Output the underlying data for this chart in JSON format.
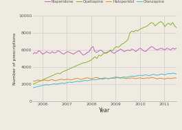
{
  "title": "",
  "xlabel": "Year",
  "ylabel": "Number of prescriptions",
  "background_color": "#f0ebe0",
  "plot_bg_color": "#f0ebe0",
  "ylim": [
    0,
    10000
  ],
  "yticks": [
    0,
    2000,
    4000,
    6000,
    8000,
    10000
  ],
  "legend": [
    "Risperidone",
    "Quetiapine",
    "Haloperidol",
    "Olanzapine"
  ],
  "colors": {
    "Risperidone": "#c060c0",
    "Quetiapine": "#80b030",
    "Haloperidol": "#e08828",
    "Olanzapine": "#40b8d8"
  },
  "line_width": 0.7,
  "start_year": 2005.6,
  "end_year": 2011.5,
  "xtick_years": [
    2006,
    2007,
    2008,
    2009,
    2010,
    2011
  ],
  "n_points": 75,
  "series": {
    "Risperidone": [
      5500,
      5700,
      5600,
      5900,
      5800,
      5500,
      5600,
      5800,
      5700,
      5600,
      5800,
      5650,
      5700,
      5900,
      5800,
      5600,
      5500,
      5700,
      5800,
      5700,
      5600,
      5500,
      5700,
      5800,
      5900,
      5600,
      5400,
      5500,
      5700,
      5800,
      6200,
      6400,
      5800,
      5700,
      5900,
      6000,
      5800,
      5600,
      5700,
      5800,
      5900,
      5700,
      5600,
      5800,
      5900,
      6100,
      6000,
      5800,
      5900,
      6000,
      5900,
      6100,
      6000,
      5800,
      6000,
      6200,
      6100,
      5900,
      5800,
      6000,
      6200,
      6400,
      6300,
      6100,
      6000,
      6100,
      6200,
      6100,
      6000,
      6200,
      6100,
      6000,
      6200,
      6100,
      6200
    ],
    "Quetiapine": [
      2000,
      2100,
      2200,
      2300,
      2400,
      2500,
      2600,
      2700,
      2800,
      2900,
      3000,
      3100,
      3200,
      3300,
      3200,
      3400,
      3500,
      3600,
      3700,
      3800,
      3900,
      4000,
      4100,
      4200,
      4300,
      4400,
      4500,
      4500,
      4600,
      4700,
      4800,
      5000,
      5200,
      5000,
      5400,
      5300,
      5500,
      5700,
      5600,
      5800,
      6000,
      5900,
      6200,
      6400,
      6300,
      6500,
      6700,
      6800,
      7000,
      7200,
      8000,
      8200,
      8100,
      8300,
      8200,
      8400,
      8500,
      8600,
      8700,
      8800,
      9000,
      9200,
      9100,
      8800,
      9000,
      9200,
      9300,
      9100,
      8700,
      9000,
      9100,
      8900,
      9200,
      8800,
      8600
    ],
    "Haloperidol": [
      2400,
      2350,
      2450,
      2500,
      2400,
      2450,
      2500,
      2450,
      2400,
      2500,
      2550,
      2450,
      2400,
      2500,
      2550,
      2600,
      2500,
      2550,
      2600,
      2550,
      2500,
      2600,
      2650,
      2700,
      2600,
      2550,
      2650,
      2700,
      2750,
      2700,
      2650,
      2700,
      2750,
      2800,
      2700,
      2650,
      2700,
      2750,
      2700,
      2650,
      2700,
      2700,
      2800,
      2850,
      2750,
      2700,
      2750,
      2700,
      2650,
      2700,
      2700,
      2750,
      2700,
      2650,
      2700,
      2750,
      2700,
      2650,
      2700,
      2750,
      2700,
      2800,
      2750,
      2700,
      2600,
      2700,
      2700,
      2650,
      2600,
      2700,
      2700,
      2650,
      2700,
      2750,
      2700
    ],
    "Olanzapine": [
      1600,
      1650,
      1700,
      1750,
      1800,
      1850,
      1900,
      1950,
      1900,
      1950,
      2000,
      2050,
      2000,
      2050,
      2100,
      2150,
      2100,
      2150,
      2200,
      2250,
      2200,
      2250,
      2300,
      2350,
      2300,
      2350,
      2400,
      2450,
      2400,
      2450,
      2500,
      2550,
      2500,
      2550,
      2600,
      2650,
      2600,
      2650,
      2700,
      2650,
      2700,
      2750,
      2700,
      2750,
      2800,
      2750,
      2800,
      2850,
      2800,
      2850,
      2900,
      2950,
      2900,
      2950,
      3000,
      3050,
      3000,
      3050,
      3100,
      3050,
      3000,
      3100,
      3150,
      3100,
      3050,
      3100,
      3200,
      3150,
      3100,
      3200,
      3250,
      3200,
      3300,
      3250,
      3200
    ]
  }
}
